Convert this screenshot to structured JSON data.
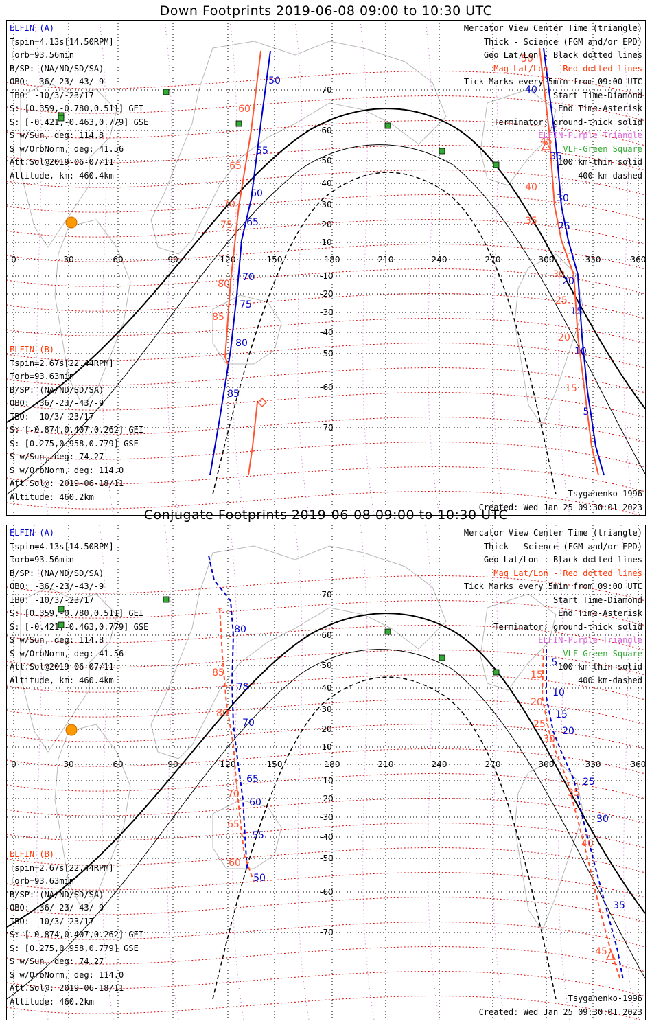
{
  "panels": [
    {
      "title": "Down Footprints 2019-06-08 09:00 to 10:30 UTC",
      "elfin_a": {
        "header": "ELFIN (A)",
        "lines": [
          "Tspin=4.13s[14.50RPM]",
          "Torb=93.56min",
          "B/SP: (NA/ND/SD/SA)",
          "OBO: -36/-23/-43/-9",
          "IBO: -10/3/-23/17",
          "S: [0.359,-0.780,0.511] GEI",
          "S: [-0.421,-0.463,0.779] GSE",
          "S w/Sun, deg: 114.8",
          "S w/OrbNorm, deg: 41.56",
          "Att.Sol@2019-06-07/11",
          "Altitude, km: 460.4km"
        ]
      },
      "elfin_b": {
        "header": "ELFIN (B)",
        "lines": [
          "Tspin=2.67s[22.44RPM]",
          "Torb=93.63min",
          "B/SP: (NA/ND/SD/SA)",
          "OBO: -36/-23/-43/-9",
          "IBO: -10/3/-23/17",
          "S: [-0.874,0.407,0.262] GEI",
          "S: [0.275,0.958,0.779] GSE",
          "S w/Sun, deg: 74.27",
          "S w/OrbNorm, deg: 114.0",
          "Att.Sol@: 2019-06-18/11",
          "Altitude: 460.2km"
        ]
      },
      "legend": [
        "Mercator View Center Time (triangle)",
        "Thick - Science (FGM and/or EPD)",
        "Geo Lat/Lon - Black dotted lines",
        "Mag Lat/Lon - Red dotted lines",
        "Tick Marks every 5min from 09:00 UTC",
        "Start Time-Diamond",
        "End Time-Asterisk",
        "Terminator: ground-thick solid",
        "ELFIN-Purple Triangle",
        "VLF-Green Square",
        "100 km-thin solid",
        "400 km-dashed"
      ],
      "model": "Tsyganenko-1996",
      "created": "Created: Wed Jan 25 09:30:01 2023",
      "a_ticks": [
        "50",
        "55",
        "60",
        "65",
        "70",
        "75",
        "80",
        "85",
        "35",
        "30",
        "25",
        "20",
        "15",
        "10",
        "5",
        "40"
      ],
      "b_ticks": [
        "60",
        "65",
        "70",
        "75",
        "80",
        "85",
        "45",
        "40",
        "35",
        "30",
        "25",
        "20",
        "15",
        "50"
      ]
    },
    {
      "title": "Conjugate Footprints 2019-06-08 09:00 to 10:30 UTC",
      "elfin_a": {
        "header": "ELFIN (A)",
        "lines": [
          "Tspin=4.13s[14.50RPM]",
          "Torb=93.56min",
          "B/SP: (NA/ND/SD/SA)",
          "OBO: -36/-23/-43/-9",
          "IBO: -10/3/-23/17",
          "S: [0.359,-0.780,0.511] GEI",
          "S: [-0.421,-0.463,0.779] GSE",
          "S w/Sun, deg: 114.8",
          "S w/OrbNorm, deg: 41.56",
          "Att.Sol@2019-06-07/11",
          "Altitude, km: 460.4km"
        ]
      },
      "elfin_b": {
        "header": "ELFIN (B)",
        "lines": [
          "Tspin=2.67s[22.44RPM]",
          "Torb=93.63min",
          "B/SP: (NA/ND/SD/SA)",
          "OBO: -36/-23/-43/-9",
          "IBO: -10/3/-23/17",
          "S: [-0.874,0.407,0.262] GEI",
          "S: [0.275,0.958,0.779] GSE",
          "S w/Sun, deg: 74.27",
          "S w/OrbNorm, deg: 114.0",
          "Att.Sol@: 2019-06-18/11",
          "Altitude: 460.2km"
        ]
      },
      "legend": [
        "Mercator View Center Time (triangle)",
        "Thick - Science (FGM and/or EPD)",
        "Geo Lat/Lon - Black dotted lines",
        "Mag Lat/Lon - Red dotted lines",
        "Tick Marks every 5min from 09:00 UTC",
        "Start Time-Diamond",
        "End Time-Asterisk",
        "Terminator: ground-thick solid",
        "ELFIN-Purple Triangle",
        "VLF-Green Square",
        "100 km-thin solid",
        "400 km-dashed"
      ],
      "model": "Tsyganenko-1996",
      "created": "Created: Wed Jan 25 09:30:01 2023",
      "a_ticks": [
        "80",
        "75",
        "70",
        "65",
        "60",
        "55",
        "50",
        "5",
        "10",
        "15",
        "20",
        "25",
        "30",
        "35"
      ],
      "b_ticks": [
        "85",
        "80",
        "70",
        "65",
        "60",
        "15",
        "20",
        "25",
        "30",
        "35",
        "40",
        "45"
      ]
    }
  ],
  "axes": {
    "lon_ticks": [
      "0",
      "30",
      "60",
      "90",
      "120",
      "150",
      "180",
      "210",
      "240",
      "270",
      "300",
      "330",
      "360"
    ],
    "lat_ticks": [
      "70",
      "60",
      "50",
      "40",
      "30",
      "20",
      "10",
      "-10",
      "-20",
      "-30",
      "-40",
      "-50",
      "-60",
      "-70"
    ]
  },
  "colors": {
    "elfin_a": "#0000cc",
    "elfin_b": "#ff5533",
    "mag_grid": "#dd0000",
    "geo_grid": "#000000",
    "elfin_marker": "#cc66cc",
    "vlf_marker": "#33aa33",
    "sun": "#ff9900"
  }
}
